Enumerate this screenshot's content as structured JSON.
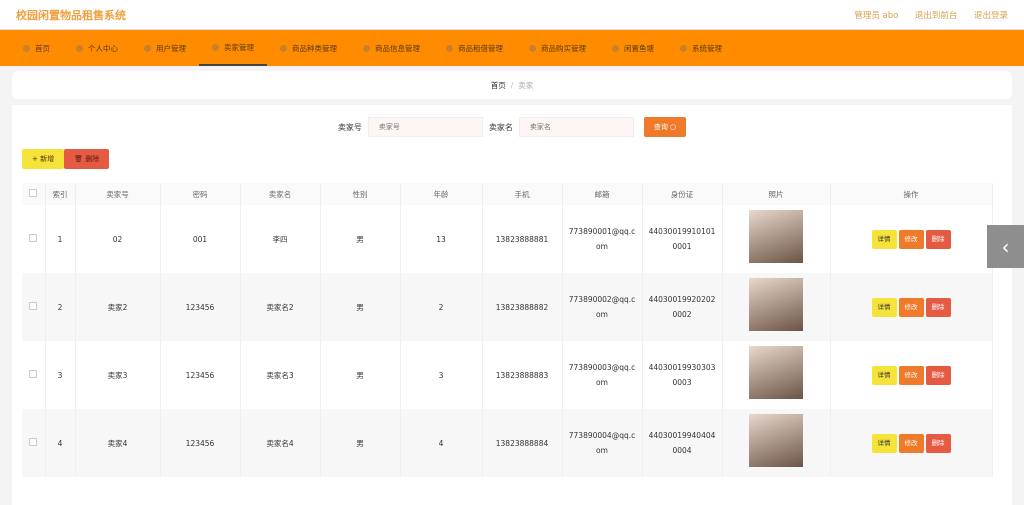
{
  "header": {
    "title": "校园闲置物品租售系统",
    "user": "管理员 abo",
    "to_front": "退出到前台",
    "logout": "退出登录"
  },
  "nav": [
    {
      "label": "首页"
    },
    {
      "label": "个人中心"
    },
    {
      "label": "用户管理"
    },
    {
      "label": "卖家管理",
      "active": true
    },
    {
      "label": "商品种类管理"
    },
    {
      "label": "商品信息管理"
    },
    {
      "label": "商品租借管理"
    },
    {
      "label": "商品购买管理"
    },
    {
      "label": "闲置鱼塘"
    },
    {
      "label": "系统管理"
    }
  ],
  "breadcrumb": {
    "home": "首页",
    "sep": "/",
    "current": "卖家"
  },
  "search": {
    "field1_label": "卖家号",
    "field1_placeholder": "卖家号",
    "field2_label": "卖家名",
    "field2_placeholder": "卖家名",
    "button": "查询 ○"
  },
  "actions": {
    "add": "+ 新增",
    "delete": "🗑 删除"
  },
  "table": {
    "headers": [
      "",
      "索引",
      "卖家号",
      "密码",
      "卖家名",
      "性别",
      "年龄",
      "手机",
      "邮箱",
      "身份证",
      "照片",
      "操作"
    ],
    "rows": [
      {
        "index": "1",
        "seller_no": "02",
        "password": "001",
        "name": "李四",
        "gender": "男",
        "age": "13",
        "phone": "13823888881",
        "email": "773890001@qq.com",
        "id_card": "440300199101010001"
      },
      {
        "index": "2",
        "seller_no": "卖家2",
        "password": "123456",
        "name": "卖家名2",
        "gender": "男",
        "age": "2",
        "phone": "13823888882",
        "email": "773890002@qq.com",
        "id_card": "440300199202020002"
      },
      {
        "index": "3",
        "seller_no": "卖家3",
        "password": "123456",
        "name": "卖家名3",
        "gender": "男",
        "age": "3",
        "phone": "13823888883",
        "email": "773890003@qq.com",
        "id_card": "440300199303030003"
      },
      {
        "index": "4",
        "seller_no": "卖家4",
        "password": "123456",
        "name": "卖家名4",
        "gender": "男",
        "age": "4",
        "phone": "13823888884",
        "email": "773890004@qq.com",
        "id_card": "440300199404040004"
      }
    ],
    "op_detail": "详情",
    "op_edit": "修改",
    "op_delete": "删除"
  },
  "side_tab": "‹",
  "colors": {
    "nav": "#ff8c00",
    "title": "#f0a040",
    "add": "#f5e33a",
    "delete": "#e45a42",
    "search": "#ef7a2a"
  }
}
